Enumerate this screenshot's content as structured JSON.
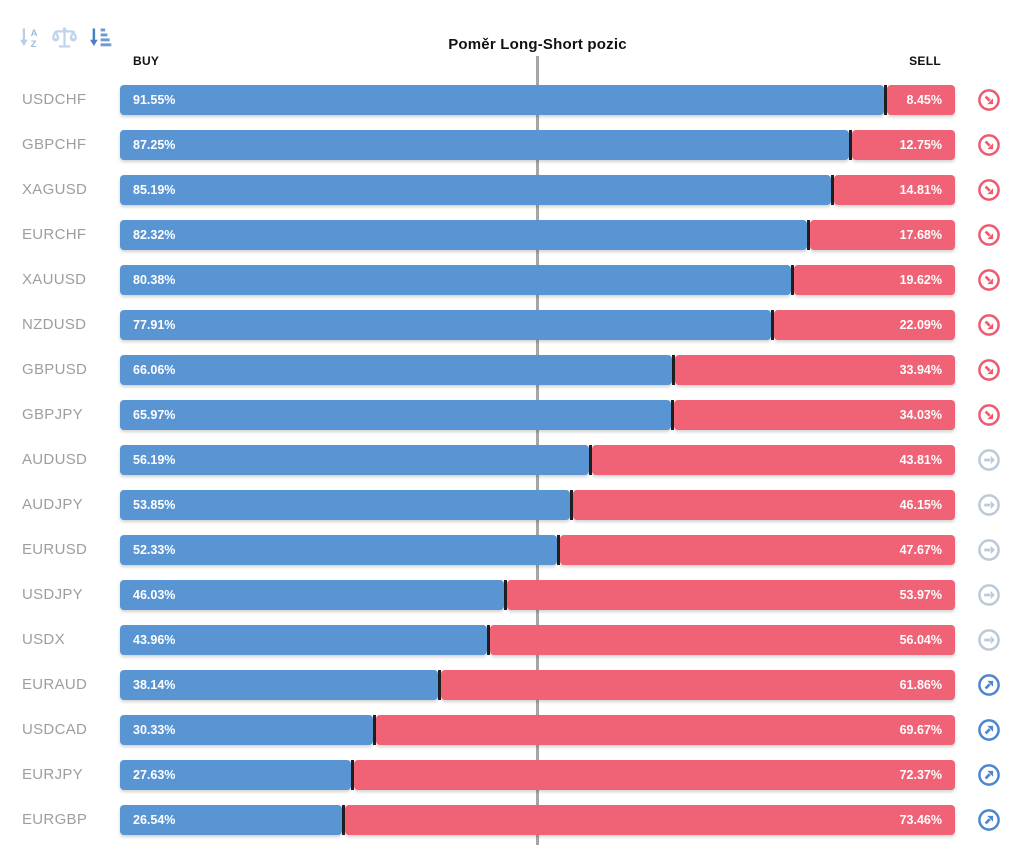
{
  "title": "Poměr Long-Short pozic",
  "columns": {
    "buy": "BUY",
    "sell": "SELL"
  },
  "toolbar": {
    "icons": [
      {
        "name": "sort-alphabetical-icon",
        "state": "inactive"
      },
      {
        "name": "balance-scale-icon",
        "state": "inactive"
      },
      {
        "name": "sort-amount-icon",
        "state": "active"
      }
    ]
  },
  "colors": {
    "buy_bar": "#5995d3",
    "sell_bar": "#f06275",
    "segment_divider": "#1f1f1f",
    "center_line": "#a6a6a6",
    "pair_label": "#9e9e9e",
    "icon_red": "#ef5a6e",
    "icon_gray": "#bcc9d9",
    "icon_blue": "#4c86d0",
    "toolbar_light_blue": "#b7cde8",
    "toolbar_dark_blue": "#4a7fc1"
  },
  "chart_data": {
    "type": "bar",
    "subtype": "horizontal-stacked-100pct",
    "title": "Poměr Long-Short pozic",
    "legend_position": "column-headers",
    "grid": "single-center-line-at-50pct",
    "xlim": [
      0,
      100
    ],
    "categories": [
      "USDCHF",
      "GBPCHF",
      "XAGUSD",
      "EURCHF",
      "XAUUSD",
      "NZDUSD",
      "GBPUSD",
      "GBPJPY",
      "AUDUSD",
      "AUDJPY",
      "EURUSD",
      "USDJPY",
      "USDX",
      "EURAUD",
      "USDCAD",
      "EURJPY",
      "EURGBP"
    ],
    "series": [
      {
        "name": "BUY",
        "color": "#5995d3",
        "values": [
          91.55,
          87.25,
          85.19,
          82.32,
          80.38,
          77.91,
          66.06,
          65.97,
          56.19,
          53.85,
          52.33,
          46.03,
          43.96,
          38.14,
          30.33,
          27.63,
          26.54
        ]
      },
      {
        "name": "SELL",
        "color": "#f06275",
        "values": [
          8.45,
          12.75,
          14.81,
          17.68,
          19.62,
          22.09,
          33.94,
          34.03,
          43.81,
          46.15,
          47.67,
          53.97,
          56.04,
          61.86,
          69.67,
          72.37,
          73.46
        ]
      }
    ],
    "row_trend_icons": [
      "down",
      "down",
      "down",
      "down",
      "down",
      "down",
      "down",
      "down",
      "neutral",
      "neutral",
      "neutral",
      "neutral",
      "neutral",
      "up",
      "up",
      "up",
      "up"
    ]
  },
  "rows": [
    {
      "pair": "USDCHF",
      "buy": "91.55%",
      "sell": "8.45%",
      "buy_value": 91.55,
      "trend": "down"
    },
    {
      "pair": "GBPCHF",
      "buy": "87.25%",
      "sell": "12.75%",
      "buy_value": 87.25,
      "trend": "down"
    },
    {
      "pair": "XAGUSD",
      "buy": "85.19%",
      "sell": "14.81%",
      "buy_value": 85.19,
      "trend": "down"
    },
    {
      "pair": "EURCHF",
      "buy": "82.32%",
      "sell": "17.68%",
      "buy_value": 82.32,
      "trend": "down"
    },
    {
      "pair": "XAUUSD",
      "buy": "80.38%",
      "sell": "19.62%",
      "buy_value": 80.38,
      "trend": "down"
    },
    {
      "pair": "NZDUSD",
      "buy": "77.91%",
      "sell": "22.09%",
      "buy_value": 77.91,
      "trend": "down"
    },
    {
      "pair": "GBPUSD",
      "buy": "66.06%",
      "sell": "33.94%",
      "buy_value": 66.06,
      "trend": "down"
    },
    {
      "pair": "GBPJPY",
      "buy": "65.97%",
      "sell": "34.03%",
      "buy_value": 65.97,
      "trend": "down"
    },
    {
      "pair": "AUDUSD",
      "buy": "56.19%",
      "sell": "43.81%",
      "buy_value": 56.19,
      "trend": "neutral"
    },
    {
      "pair": "AUDJPY",
      "buy": "53.85%",
      "sell": "46.15%",
      "buy_value": 53.85,
      "trend": "neutral"
    },
    {
      "pair": "EURUSD",
      "buy": "52.33%",
      "sell": "47.67%",
      "buy_value": 52.33,
      "trend": "neutral"
    },
    {
      "pair": "USDJPY",
      "buy": "46.03%",
      "sell": "53.97%",
      "buy_value": 46.03,
      "trend": "neutral"
    },
    {
      "pair": "USDX",
      "buy": "43.96%",
      "sell": "56.04%",
      "buy_value": 43.96,
      "trend": "neutral"
    },
    {
      "pair": "EURAUD",
      "buy": "38.14%",
      "sell": "61.86%",
      "buy_value": 38.14,
      "trend": "up"
    },
    {
      "pair": "USDCAD",
      "buy": "30.33%",
      "sell": "69.67%",
      "buy_value": 30.33,
      "trend": "up"
    },
    {
      "pair": "EURJPY",
      "buy": "27.63%",
      "sell": "72.37%",
      "buy_value": 27.63,
      "trend": "up"
    },
    {
      "pair": "EURGBP",
      "buy": "26.54%",
      "sell": "73.46%",
      "buy_value": 26.54,
      "trend": "up"
    }
  ]
}
